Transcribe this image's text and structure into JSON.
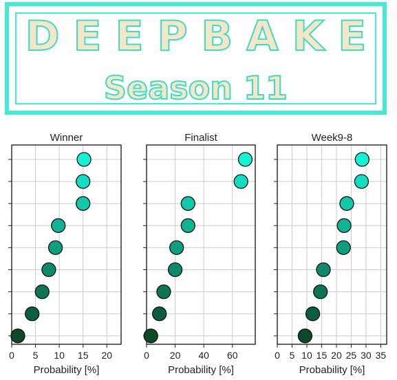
{
  "banner": {
    "title": "DEEPBAKE",
    "subtitle": "Season 11",
    "colors": {
      "border": "#44ead3",
      "fill": "#f6e6c8"
    }
  },
  "chart_data": [
    {
      "type": "scatter",
      "title": "Winner",
      "xlabel": "Probability [%]",
      "xlim": [
        0,
        23
      ],
      "xticks": [
        0,
        5,
        10,
        15,
        20
      ],
      "values": [
        15.2,
        15.0,
        15.0,
        9.8,
        9.2,
        7.8,
        6.4,
        4.3,
        1.3
      ],
      "grid": true
    },
    {
      "type": "scatter",
      "title": "Finalist",
      "xlabel": "Probability [%]",
      "xlim": [
        0,
        76
      ],
      "xticks": [
        0,
        20,
        40,
        60
      ],
      "values": [
        69,
        66,
        29,
        29,
        21,
        20,
        12,
        9,
        3
      ],
      "grid": true
    },
    {
      "type": "scatter",
      "title": "Week9-8",
      "xlabel": "Probability [%]",
      "xlim": [
        0,
        37
      ],
      "xticks": [
        0,
        5,
        10,
        15,
        20,
        25,
        30,
        35
      ],
      "values": [
        28.7,
        28.5,
        23.5,
        22.6,
        22.4,
        15.6,
        14.6,
        12.0,
        9.4
      ],
      "grid": true
    }
  ],
  "colors": {
    "high": "#14f2d6",
    "low": "#0a4a2a",
    "marker_edge": "#111111",
    "grid": "#cccccc"
  }
}
